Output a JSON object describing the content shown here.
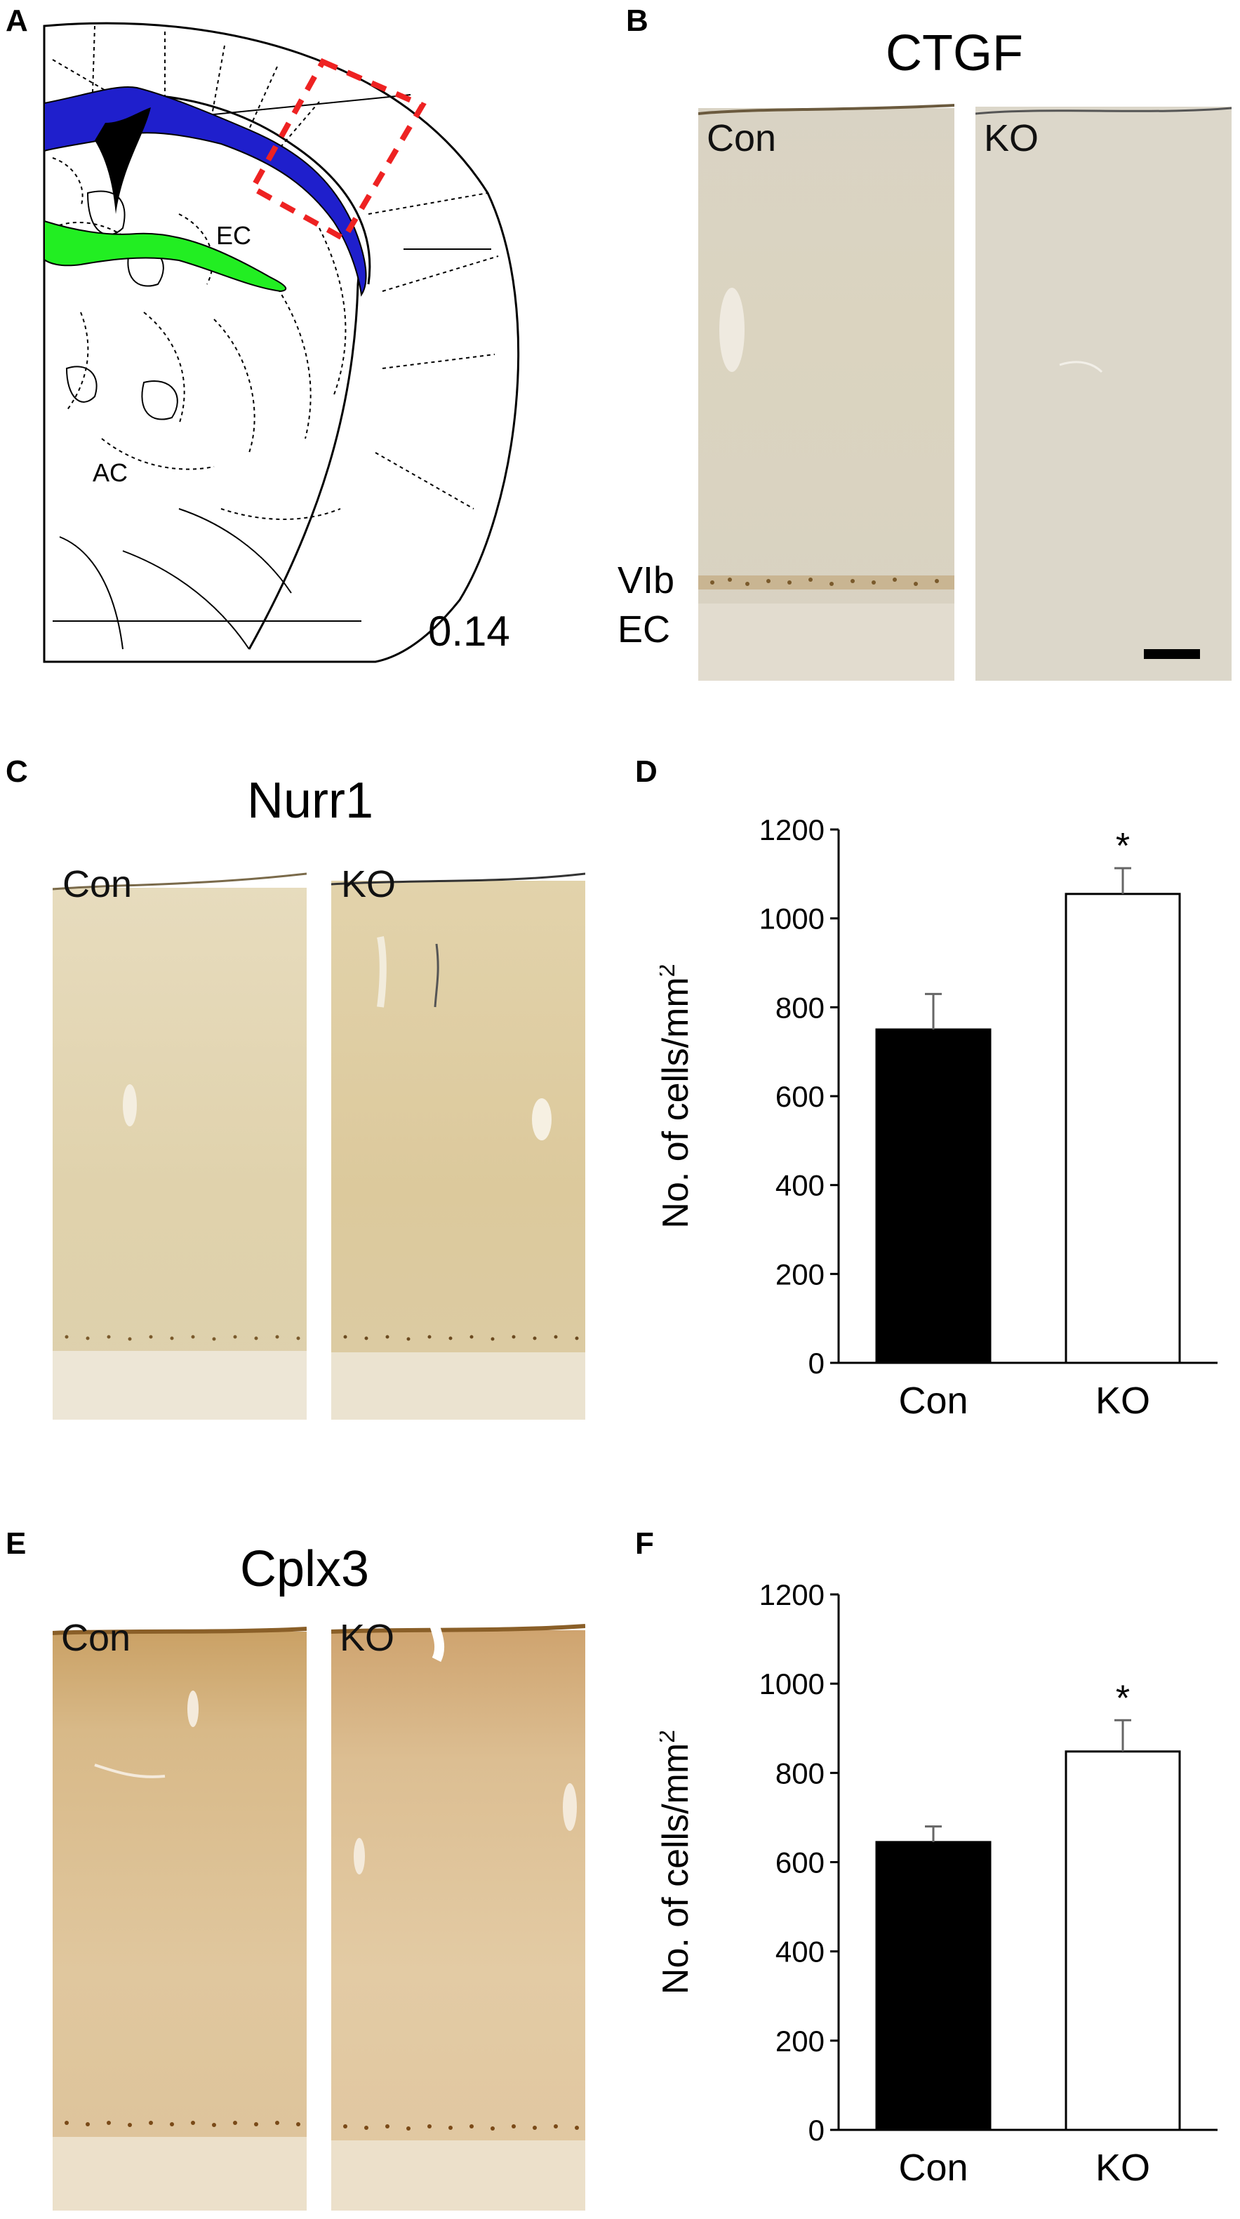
{
  "panels": {
    "A": {
      "letter": "A",
      "region_labels": [
        "EC",
        "AC"
      ],
      "section_level": "0.14",
      "colors": {
        "ec_fill": "#1f1fcc",
        "ac_fill": "#22ee22",
        "ventricle": "#000000",
        "box": "#ee2222"
      }
    },
    "B": {
      "letter": "B",
      "title": "CTGF",
      "left_label": "Con",
      "right_label": "KO",
      "layer_labels": [
        "VIb",
        "EC"
      ]
    },
    "C": {
      "letter": "C",
      "title": "Nurr1",
      "left_label": "Con",
      "right_label": "KO"
    },
    "D": {
      "letter": "D"
    },
    "E": {
      "letter": "E",
      "title": "Cplx3",
      "left_label": "Con",
      "right_label": "KO"
    },
    "F": {
      "letter": "F"
    }
  },
  "chart_data": [
    {
      "type": "bar",
      "panel": "D",
      "categories": [
        "Con",
        "KO"
      ],
      "values": [
        750,
        1055
      ],
      "errors": [
        80,
        58
      ],
      "bar_colors": [
        "#000000",
        "#ffffff"
      ],
      "significance": [
        "",
        "*"
      ],
      "ylabel_main": "No. of cells/mm",
      "ylabel_sup": "2",
      "ylim": [
        0,
        1200
      ],
      "yticks": [
        0,
        200,
        400,
        600,
        800,
        1000,
        1200
      ],
      "ytick_labels": [
        "0",
        "200",
        "400",
        "600",
        "800",
        "1000",
        "1200"
      ]
    },
    {
      "type": "bar",
      "panel": "F",
      "categories": [
        "Con",
        "KO"
      ],
      "values": [
        645,
        848
      ],
      "errors": [
        35,
        70
      ],
      "bar_colors": [
        "#000000",
        "#ffffff"
      ],
      "significance": [
        "",
        "*"
      ],
      "ylabel_main": "No. of cells/mm",
      "ylabel_sup": "2",
      "ylim": [
        0,
        1200
      ],
      "yticks": [
        0,
        200,
        400,
        600,
        800,
        1000,
        1200
      ],
      "ytick_labels": [
        "0",
        "200",
        "400",
        "600",
        "800",
        "1000",
        "1200"
      ]
    }
  ]
}
